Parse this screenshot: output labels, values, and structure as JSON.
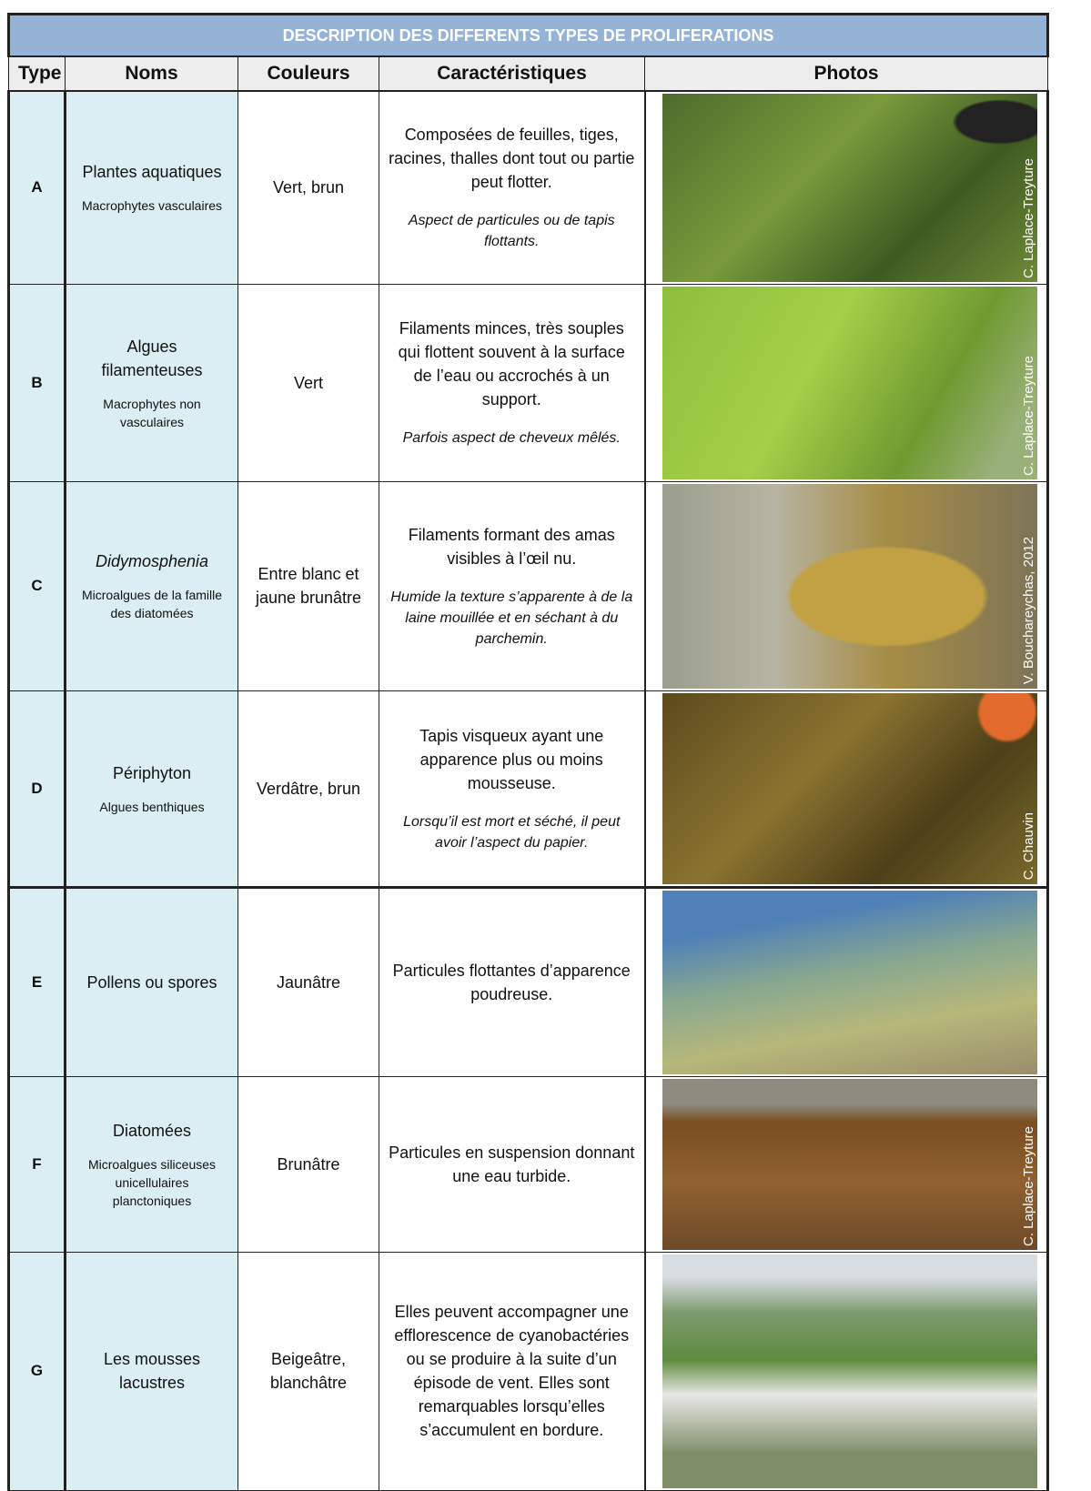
{
  "table": {
    "title": "DESCRIPTION DES DIFFERENTS TYPES DE PROLIFERATIONS",
    "headers": [
      "Type",
      "Noms",
      "Couleurs",
      "Caractéristiques",
      "Photos"
    ],
    "rows": [
      {
        "type": "A",
        "name": "Plantes aquatiques",
        "subname": "Macrophytes vasculaires",
        "color": "Vert, brun",
        "text": "Composées de feuilles, tiges, racines, thalles dont tout ou partie peut flotter.",
        "note": "Aspect de particules ou de tapis flottants.",
        "credit": "C. Laplace-Treyture"
      },
      {
        "type": "B",
        "name": "Algues filamenteuses",
        "subname": "Macrophytes non vasculaires",
        "color": "Vert",
        "text": "Filaments minces, très souples qui flottent souvent à la surface de l’eau ou accrochés à un support.",
        "note": "Parfois aspect de cheveux mêlés.",
        "credit": "C. Laplace-Treyture"
      },
      {
        "type": "C",
        "name": "Didymosphenia",
        "name_italic": true,
        "subname": "Microalgues de la famille des diatomées",
        "color": "Entre blanc et jaune brunâtre",
        "text": "Filaments formant des amas visibles à l’œil nu.",
        "note": "Humide la texture s’apparente à de la laine mouillée et en séchant à du parchemin.",
        "credit": "V. Bouchareychas, 2012"
      },
      {
        "type": "D",
        "name": "Périphyton",
        "subname": "Algues benthiques",
        "color": "Verdâtre, brun",
        "text": "Tapis visqueux ayant une apparence plus ou moins mousseuse.",
        "note": "Lorsqu’il est mort et séché, il peut avoir l’aspect du papier.",
        "credit": "C. Chauvin"
      },
      {
        "type": "E",
        "name": "Pollens ou spores",
        "color": "Jaunâtre",
        "text": "Particules flottantes d’apparence poudreuse."
      },
      {
        "type": "F",
        "name": "Diatomées",
        "subname": "Microalgues siliceuses unicellulaires planctoniques",
        "color": "Brunâtre",
        "text": "Particules en suspension donnant une eau turbide.",
        "credit": "C. Laplace-Treyture"
      },
      {
        "type": "G",
        "name": "Les mousses lacustres",
        "color": "Beigeâtre, blanchâtre",
        "text": "Elles peuvent accompagner une efflorescence de cyanobactéries ou se produire à la suite d’un épisode de vent. Elles sont remarquables lorsqu’elles s’accumulent en bordure."
      }
    ]
  }
}
